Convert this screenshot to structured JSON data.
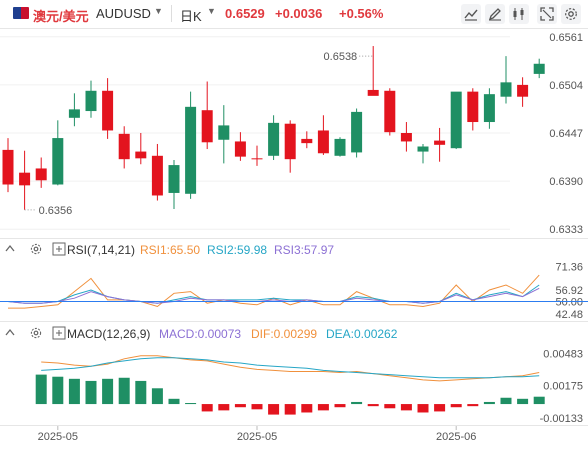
{
  "header": {
    "pair_zh": "澳元/美元",
    "pair_en": "AUDUSD",
    "timeframe": "日K",
    "last_price": "0.6529",
    "change": "+0.0036",
    "change_pct": "+0.56%",
    "toolbar_icons": [
      "chart-type-icon",
      "draw-icon",
      "indicator-icon",
      "fullscreen-icon",
      "settings-icon"
    ]
  },
  "colors": {
    "up": "#1f8f64",
    "down": "#e3141e",
    "price_up_text": "#e0393e",
    "rsi1": "#f0903c",
    "rsi2": "#26a6c6",
    "rsi3": "#8c70d4",
    "macd_line": "#f0903c",
    "dea_line": "#26a6c6",
    "level50": "#2c7cf0"
  },
  "chart_data": [
    {
      "type": "candlestick",
      "name": "AUDUSD 日K",
      "y_ticks": [
        "0.6561",
        "0.6504",
        "0.6447",
        "0.6390",
        "0.6333"
      ],
      "ylim": [
        0.6325,
        0.6569
      ],
      "x_labels": [
        "2025-05",
        "2025-05",
        "2025-06"
      ],
      "annotations": {
        "high": "0.6538",
        "low": "0.6356"
      },
      "candles": [
        {
          "o": 0.6427,
          "h": 0.6441,
          "l": 0.6377,
          "c": 0.6386
        },
        {
          "o": 0.64,
          "h": 0.6426,
          "l": 0.6356,
          "c": 0.6385
        },
        {
          "o": 0.6405,
          "h": 0.6418,
          "l": 0.6382,
          "c": 0.6391
        },
        {
          "o": 0.6386,
          "h": 0.6462,
          "l": 0.6385,
          "c": 0.6441
        },
        {
          "o": 0.6465,
          "h": 0.6494,
          "l": 0.6455,
          "c": 0.6475
        },
        {
          "o": 0.6473,
          "h": 0.6509,
          "l": 0.6465,
          "c": 0.6497
        },
        {
          "o": 0.6497,
          "h": 0.6512,
          "l": 0.644,
          "c": 0.645
        },
        {
          "o": 0.6446,
          "h": 0.6455,
          "l": 0.6405,
          "c": 0.6416
        },
        {
          "o": 0.6425,
          "h": 0.6447,
          "l": 0.641,
          "c": 0.6417
        },
        {
          "o": 0.642,
          "h": 0.6434,
          "l": 0.6367,
          "c": 0.6373
        },
        {
          "o": 0.6376,
          "h": 0.6415,
          "l": 0.6357,
          "c": 0.6409
        },
        {
          "o": 0.6375,
          "h": 0.6496,
          "l": 0.6369,
          "c": 0.6478
        },
        {
          "o": 0.6474,
          "h": 0.6508,
          "l": 0.6428,
          "c": 0.6436
        },
        {
          "o": 0.6439,
          "h": 0.648,
          "l": 0.6411,
          "c": 0.6456
        },
        {
          "o": 0.6437,
          "h": 0.6448,
          "l": 0.6414,
          "c": 0.6419
        },
        {
          "o": 0.6417,
          "h": 0.6432,
          "l": 0.6408,
          "c": 0.6416
        },
        {
          "o": 0.642,
          "h": 0.6468,
          "l": 0.6415,
          "c": 0.6459
        },
        {
          "o": 0.6458,
          "h": 0.6462,
          "l": 0.64,
          "c": 0.6416
        },
        {
          "o": 0.644,
          "h": 0.6449,
          "l": 0.6429,
          "c": 0.6435
        },
        {
          "o": 0.645,
          "h": 0.6468,
          "l": 0.6421,
          "c": 0.6423
        },
        {
          "o": 0.642,
          "h": 0.6442,
          "l": 0.6419,
          "c": 0.644
        },
        {
          "o": 0.6424,
          "h": 0.6476,
          "l": 0.6418,
          "c": 0.6472
        },
        {
          "o": 0.6498,
          "h": 0.655,
          "l": 0.6493,
          "c": 0.6491
        },
        {
          "o": 0.6497,
          "h": 0.65,
          "l": 0.6444,
          "c": 0.6448
        },
        {
          "o": 0.6447,
          "h": 0.646,
          "l": 0.6425,
          "c": 0.6437
        },
        {
          "o": 0.6425,
          "h": 0.6434,
          "l": 0.6411,
          "c": 0.6431
        },
        {
          "o": 0.6438,
          "h": 0.6453,
          "l": 0.6413,
          "c": 0.6433
        },
        {
          "o": 0.6429,
          "h": 0.6495,
          "l": 0.6428,
          "c": 0.6496
        },
        {
          "o": 0.6496,
          "h": 0.65,
          "l": 0.645,
          "c": 0.646
        },
        {
          "o": 0.646,
          "h": 0.65,
          "l": 0.6452,
          "c": 0.6493
        },
        {
          "o": 0.649,
          "h": 0.6538,
          "l": 0.6482,
          "c": 0.6507
        },
        {
          "o": 0.6504,
          "h": 0.6513,
          "l": 0.6478,
          "c": 0.649
        },
        {
          "o": 0.6517,
          "h": 0.6535,
          "l": 0.6512,
          "c": 0.6529
        }
      ]
    },
    {
      "type": "line",
      "name": "RSI(7,14,21)",
      "legend": {
        "title": "RSI(7,14,21)",
        "rsi1": "RSI1:65.50",
        "rsi2": "RSI2:59.98",
        "rsi3": "RSI3:57.97"
      },
      "y_ticks": [
        "71.36",
        "56.92",
        "50.00",
        "42.48"
      ],
      "ylim": [
        40,
        77
      ],
      "series": [
        {
          "name": "RSI1",
          "values": [
            46,
            46,
            47,
            48,
            56,
            64,
            51,
            51,
            50,
            47,
            55,
            56,
            49,
            51,
            49,
            48,
            52,
            48,
            51,
            48,
            48,
            56,
            52,
            48,
            48,
            47,
            49,
            60,
            50,
            57,
            60,
            55,
            66
          ]
        },
        {
          "name": "RSI2",
          "values": [
            50,
            49,
            49,
            50,
            54,
            57,
            53,
            51,
            50,
            49,
            51,
            53,
            51,
            51,
            51,
            51,
            52,
            51,
            51,
            50,
            50,
            53,
            52,
            50,
            50,
            49,
            50,
            55,
            51,
            54,
            56,
            53,
            60
          ]
        },
        {
          "name": "RSI3",
          "values": [
            50,
            49,
            49,
            50,
            52,
            56,
            53,
            51,
            50,
            49,
            50,
            52,
            51,
            51,
            50,
            50,
            51,
            50,
            51,
            50,
            50,
            52,
            51,
            50,
            50,
            49,
            50,
            54,
            51,
            53,
            55,
            53,
            58
          ]
        }
      ]
    },
    {
      "type": "bar",
      "name": "MACD(12,26,9)",
      "legend": {
        "title": "MACD(12,26,9)",
        "macd": "MACD:0.00073",
        "dif": "DIF:0.00299",
        "dea": "DEA:0.00262"
      },
      "y_ticks": [
        "0.00483",
        "0.00175",
        "-0.00133"
      ],
      "ylim": [
        -0.0018,
        0.0059
      ],
      "series": [
        {
          "name": "MACD",
          "values": [
            0.0028,
            0.0026,
            0.0024,
            0.0022,
            0.0024,
            0.0025,
            0.0022,
            0.0015,
            0.0005,
            0.0001,
            -0.0007,
            -0.0006,
            -0.0003,
            -0.0005,
            -0.001,
            -0.001,
            -0.0008,
            -0.0006,
            -0.0003,
            0.0002,
            -0.0002,
            -0.0004,
            -0.0006,
            -0.0008,
            -0.0007,
            -0.0003,
            -0.0002,
            0.0002,
            0.0006,
            0.0005,
            0.0007
          ]
        },
        {
          "name": "DIF",
          "values": [
            0.004,
            0.0039,
            0.0037,
            0.0036,
            0.0038,
            0.0043,
            0.0046,
            0.0046,
            0.0044,
            0.0042,
            0.0041,
            0.0038,
            0.0035,
            0.0033,
            0.0032,
            0.0031,
            0.0031,
            0.0031,
            0.003,
            0.0031,
            0.0029,
            0.0027,
            0.0025,
            0.0023,
            0.0022,
            0.0023,
            0.0024,
            0.0025,
            0.0026,
            0.0027,
            0.003
          ]
        },
        {
          "name": "DEA",
          "values": [
            0.0032,
            0.0033,
            0.0034,
            0.0036,
            0.0039,
            0.0041,
            0.0043,
            0.0044,
            0.0044,
            0.0043,
            0.0042,
            0.004,
            0.0039,
            0.0037,
            0.0036,
            0.0035,
            0.0034,
            0.0032,
            0.0031,
            0.003,
            0.0029,
            0.0028,
            0.0027,
            0.0026,
            0.0025,
            0.0025,
            0.0025,
            0.0025,
            0.0026,
            0.0026,
            0.0027
          ]
        }
      ]
    }
  ]
}
